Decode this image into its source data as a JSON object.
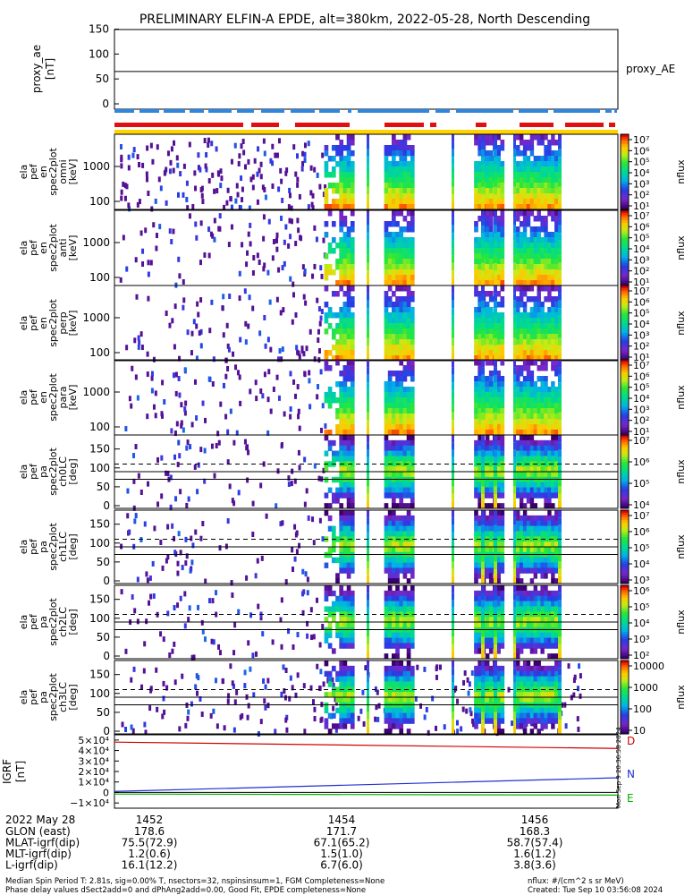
{
  "title": "PRELIMINARY ELFIN-A EPDE, alt=380km, 2022-05-28, North Descending",
  "colors": {
    "bar_blue": "#2e86de",
    "bar_red": "#e01010",
    "bar_yellow": "#ffd400",
    "line_black": "#000000",
    "line_red": "#d00000",
    "line_blue": "#2030d0",
    "line_green": "#00b000"
  },
  "panels": {
    "proxy_ae": {
      "ylabel": [
        "proxy_ae",
        "[nT]"
      ],
      "right_label": "proxy_AE",
      "yticks": [
        "150",
        "100",
        "50",
        "0"
      ]
    },
    "en_panels": [
      {
        "ylabel": [
          "ela",
          "pef",
          "en",
          "spec2plot",
          "omni",
          "[keV]"
        ]
      },
      {
        "ylabel": [
          "ela",
          "pef",
          "en",
          "spec2plot",
          "anti",
          "[keV]"
        ]
      },
      {
        "ylabel": [
          "ela",
          "pef",
          "en",
          "spec2plot",
          "perp",
          "[keV]"
        ]
      },
      {
        "ylabel": [
          "ela",
          "pef",
          "en",
          "spec2plot",
          "para",
          "[keV]"
        ]
      }
    ],
    "en_yticks": [
      "1000",
      "100"
    ],
    "pa_panels": [
      {
        "ylabel": [
          "ela",
          "pef",
          "pa",
          "spec2plot",
          "ch0LC",
          "[deg]"
        ]
      },
      {
        "ylabel": [
          "ela",
          "pef",
          "pa",
          "spec2plot",
          "ch1LC",
          "[deg]"
        ]
      },
      {
        "ylabel": [
          "ela",
          "pef",
          "pa",
          "spec2plot",
          "ch2LC",
          "[deg]"
        ]
      },
      {
        "ylabel": [
          "ela",
          "pef",
          "pa",
          "spec2plot",
          "ch3LC",
          "[deg]"
        ]
      }
    ],
    "pa_yticks": [
      "150",
      "100",
      "50",
      "0"
    ],
    "igrf": {
      "ylabel": [
        "IGRF",
        "[nT]"
      ],
      "yticks": [
        "5×10⁴",
        "4×10⁴",
        "3×10⁴",
        "2×10⁴",
        "1×10⁴",
        "0",
        "−1×10⁴"
      ],
      "labels": [
        "D",
        "N",
        "E"
      ],
      "side_stamp": "Mon Sep  9 20:36:58 2024"
    },
    "colorbars": [
      {
        "ticks": [
          "10⁷",
          "10⁶",
          "10⁵",
          "10⁴",
          "10³",
          "10²",
          "10¹"
        ],
        "label": "nflux"
      },
      {
        "ticks": [
          "10⁷",
          "10⁶",
          "10⁵",
          "10⁴",
          "10³",
          "10²",
          "10¹"
        ],
        "label": "nflux"
      },
      {
        "ticks": [
          "10⁷",
          "10⁶",
          "10⁵",
          "10⁴",
          "10³",
          "10²",
          "10¹"
        ],
        "label": "nflux"
      },
      {
        "ticks": [
          "10⁷",
          "10⁶",
          "10⁵",
          "10⁴",
          "10³",
          "10²",
          "10¹"
        ],
        "label": "nflux"
      },
      {
        "ticks": [
          "10⁷",
          "10⁶",
          "10⁵",
          "10⁴"
        ],
        "label": "nflux"
      },
      {
        "ticks": [
          "10⁷",
          "10⁶",
          "10⁵",
          "10⁴",
          "10³"
        ],
        "label": "nflux"
      },
      {
        "ticks": [
          "10⁶",
          "10⁵",
          "10⁴",
          "10³",
          "10²"
        ],
        "label": "nflux"
      },
      {
        "ticks": [
          "10000",
          "1000",
          "100",
          "10"
        ],
        "label": "nflux"
      }
    ]
  },
  "xaxis": {
    "date": "2022 May 28",
    "ticks": [
      "1452",
      "1454",
      "1456"
    ],
    "rows": [
      {
        "label": "GLON (east)",
        "values": [
          "178.6",
          "171.7",
          "168.3"
        ]
      },
      {
        "label": "MLAT-igrf(dip)",
        "values": [
          "75.5(72.9)",
          "67.1(65.2)",
          "58.7(57.4)"
        ]
      },
      {
        "label": "MLT-igrf(dip)",
        "values": [
          "1.2(0.6)",
          "1.5(1.0)",
          "1.6(1.2)"
        ]
      },
      {
        "label": "L-igrf(dip)",
        "values": [
          "16.1(12.2)",
          "6.7(6.0)",
          "3.8(3.6)"
        ]
      }
    ]
  },
  "footer": {
    "line1": "Median Spin Period T: 2.81s, sig=0.00% T, nsectors=32, nspinsinsum=1, FGM Completeness=None",
    "line2": "Phase delay values dSect2add=0 and dPhAng2add=0.00, Good Fit, EPDE completeness=None",
    "units": "nflux: #/(cm^2 s sr MeV)",
    "created": "Created: Tue Sep 10 03:56:08 2024"
  },
  "chart_data": {
    "type": "heatmap",
    "title": "PRELIMINARY ELFIN-A EPDE, alt=380km, 2022-05-28, North Descending",
    "xrange_minutes": [
      "1450:45",
      "1457:45"
    ],
    "proxy_ae": {
      "ylim": [
        0,
        160
      ],
      "value": 65
    },
    "spectrogram_active_intervals": [
      {
        "start": "1453:40",
        "end": "1454:05"
      },
      {
        "start": "1454:30",
        "end": "1454:55"
      },
      {
        "start": "1455:45",
        "end": "1456:10"
      },
      {
        "start": "1456:20",
        "end": "1456:55"
      }
    ],
    "en_ylim_keV": [
      60,
      7000
    ],
    "pa_ylim_deg": [
      0,
      180
    ],
    "pa_reference_lines_deg": [
      110,
      90,
      70
    ],
    "igrf": {
      "ylim": [
        -15000,
        55000
      ],
      "series": [
        {
          "name": "D",
          "start": 48000,
          "end": 42000
        },
        {
          "name": "N",
          "start": 1000,
          "end": 14000
        },
        {
          "name": "E",
          "start": -1500,
          "end": -2500
        }
      ]
    }
  }
}
